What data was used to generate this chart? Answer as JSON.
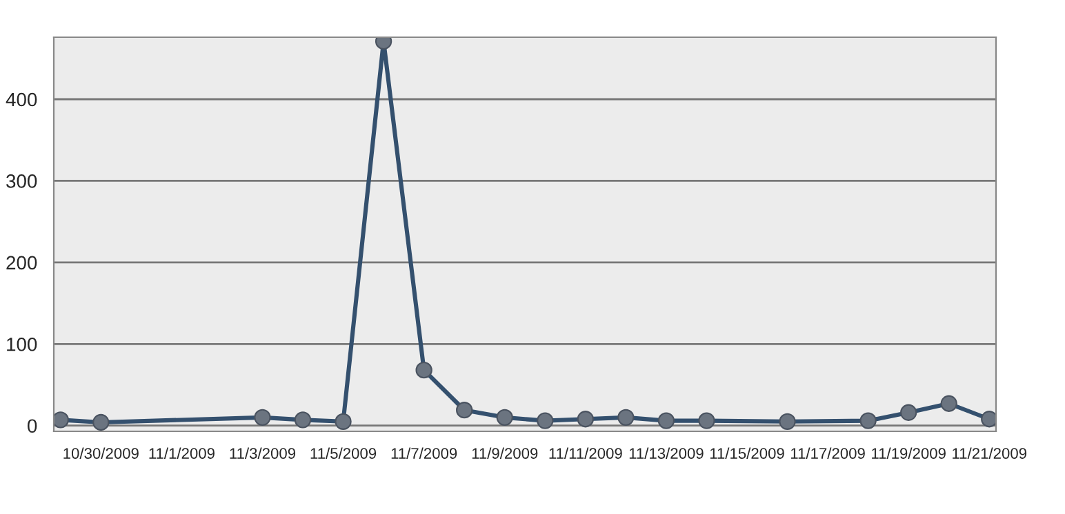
{
  "chart_data": {
    "type": "line",
    "x": [
      "2009-10-29",
      "2009-10-30",
      "2009-11-03",
      "2009-11-04",
      "2009-11-05",
      "2009-11-06",
      "2009-11-07",
      "2009-11-08",
      "2009-11-09",
      "2009-11-10",
      "2009-11-11",
      "2009-11-12",
      "2009-11-13",
      "2009-11-14",
      "2009-11-16",
      "2009-11-18",
      "2009-11-19",
      "2009-11-20",
      "2009-11-21"
    ],
    "series": [
      {
        "color": "#34506e",
        "values": [
          7,
          4,
          10,
          7,
          5,
          471,
          68,
          19,
          10,
          6,
          8,
          10,
          6,
          6,
          5,
          6,
          16,
          27,
          8
        ]
      }
    ],
    "xlim": [
      "2009-10-28T20:00",
      "2009-11-21T04:00"
    ],
    "xticks": [
      {
        "value": "2009-10-30",
        "label": "10/30/2009"
      },
      {
        "value": "2009-11-01",
        "label": "11/1/2009"
      },
      {
        "value": "2009-11-03",
        "label": "11/3/2009"
      },
      {
        "value": "2009-11-05",
        "label": "11/5/2009"
      },
      {
        "value": "2009-11-07",
        "label": "11/7/2009"
      },
      {
        "value": "2009-11-09",
        "label": "11/9/2009"
      },
      {
        "value": "2009-11-11",
        "label": "11/11/2009"
      },
      {
        "value": "2009-11-13",
        "label": "11/13/2009"
      },
      {
        "value": "2009-11-15",
        "label": "11/15/2009"
      },
      {
        "value": "2009-11-17",
        "label": "11/17/2009"
      },
      {
        "value": "2009-11-19",
        "label": "11/19/2009"
      },
      {
        "value": "2009-11-21",
        "label": "11/21/2009"
      }
    ],
    "ylim": [
      -7,
      476
    ],
    "yticks": [
      0,
      100,
      200,
      300,
      400
    ],
    "grid": "y",
    "marker": "circle",
    "line_style": "solid"
  }
}
